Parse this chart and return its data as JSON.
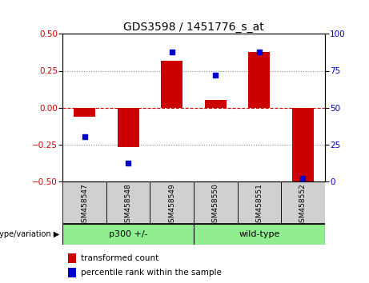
{
  "title": "GDS3598 / 1451776_s_at",
  "samples": [
    "GSM458547",
    "GSM458548",
    "GSM458549",
    "GSM458550",
    "GSM458551",
    "GSM458552"
  ],
  "red_values": [
    -0.06,
    -0.27,
    0.32,
    0.05,
    0.38,
    -0.52
  ],
  "blue_values": [
    30,
    12,
    88,
    72,
    88,
    2
  ],
  "ylim_left": [
    -0.5,
    0.5
  ],
  "ylim_right": [
    0,
    100
  ],
  "yticks_left": [
    -0.5,
    -0.25,
    0,
    0.25,
    0.5
  ],
  "yticks_right": [
    0,
    25,
    50,
    75,
    100
  ],
  "group_p300_label": "p300 +/-",
  "group_wt_label": "wild-type",
  "group_color": "#90ee90",
  "group_label_text": "genotype/variation",
  "bar_color": "#cc0000",
  "dot_color": "#0000cc",
  "bar_width": 0.5,
  "hline_color": "#cc0000",
  "dotted_color": "#888888",
  "sample_bg_color": "#d0d0d0",
  "legend_red_label": "transformed count",
  "legend_blue_label": "percentile rank within the sample",
  "title_fontsize": 10,
  "tick_fontsize": 7.5,
  "legend_fontsize": 7.5
}
